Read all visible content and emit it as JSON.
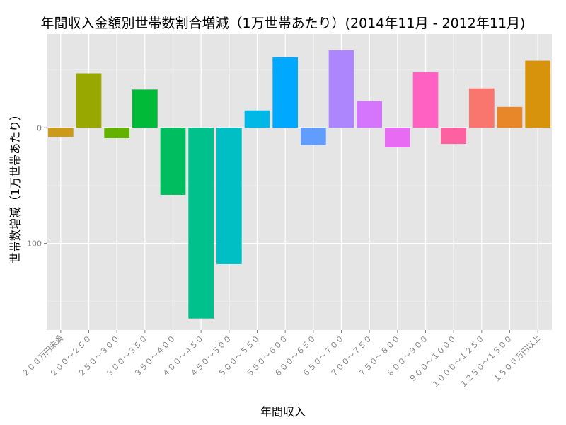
{
  "chart_data": {
    "type": "bar",
    "title": "年間収入金額別世帯数割合増減（1万世帯あたり）(2014年11月 - 2012年11月)",
    "xlabel": "年間収入",
    "ylabel": "世帯数増減（1万世帯あたり）",
    "categories": [
      "２００万円未満",
      "２００～２５０",
      "２５０～３００",
      "３００～３５０",
      "３５０～４００",
      "４００～４５０",
      "４５０～５００",
      "５００～５５０",
      "５５０～６００",
      "６００～６５０",
      "６５０～７００",
      "７００～７５０",
      "７５０～８００",
      "８００～９００",
      "９００～１０００",
      "１０００～１２５０",
      "１２５０～１５００",
      "１５００万円以上"
    ],
    "values": [
      -8,
      47,
      -9,
      33,
      -58,
      -165,
      -118,
      15,
      61,
      -15,
      67,
      23,
      -17,
      48,
      -14,
      34,
      18,
      58
    ],
    "colors": [
      "#cc9a1a",
      "#99a800",
      "#64b200",
      "#00ba38",
      "#00bd5f",
      "#00c08b",
      "#00bfc4",
      "#00b8e5",
      "#00a9ff",
      "#619cff",
      "#ad86fd",
      "#d575fe",
      "#e76bf3",
      "#ff61c3",
      "#fd619f",
      "#f8766d",
      "#e8862a",
      "#d6930b"
    ],
    "y_ticks": [
      0,
      -100
    ],
    "ylim": [
      -175,
      81
    ],
    "grid": true,
    "legend": "none"
  }
}
